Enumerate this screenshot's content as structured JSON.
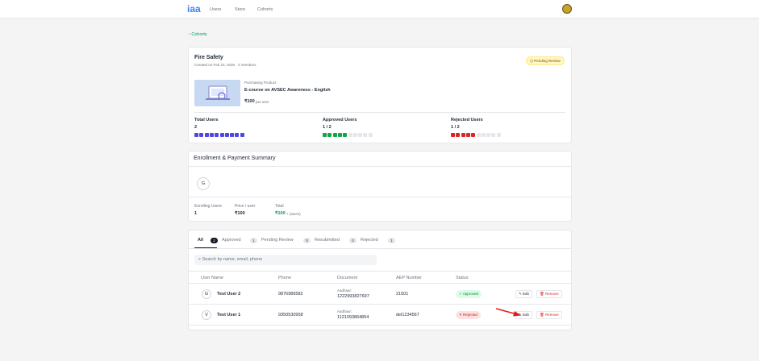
{
  "header": {
    "logo": "iaa",
    "nav": [
      "Users",
      "Store",
      "Cohorts"
    ]
  },
  "back_link": "Cohorts",
  "cohort": {
    "title": "Fire Safety",
    "subtitle": "Created on Feb 23, 2026 · 2 members",
    "badge": "Pending Review",
    "product": {
      "label": "Purchasing Product",
      "name": "E-course on AVSEC Awareness - English",
      "price": "₹100",
      "unit": "per user"
    },
    "stats": [
      {
        "label": "Total Users",
        "value": "2"
      },
      {
        "label": "Approved Users",
        "value": "1 / 2"
      },
      {
        "label": "Rejected Users",
        "value": "1 / 2"
      }
    ]
  },
  "summary": {
    "title": "Enrollment & Payment Summary",
    "avatar": "G",
    "fields": [
      {
        "label": "Enrolling Users",
        "value": "1"
      },
      {
        "label": "Price / user",
        "value": "₹100"
      },
      {
        "label": "Total",
        "value": "₹100",
        "note": "+ (taxes)"
      }
    ]
  },
  "tabs": [
    {
      "label": "All",
      "count": "2"
    },
    {
      "label": "Approved",
      "count": "1"
    },
    {
      "label": "Pending Review",
      "count": "0"
    },
    {
      "label": "Resubmitted",
      "count": "0"
    },
    {
      "label": "Rejected",
      "count": "1"
    }
  ],
  "search_placeholder": "Search by name, email, phone",
  "table": {
    "headers": [
      "User Name",
      "Phone",
      "Document",
      "AEP Number",
      "Status"
    ],
    "rows": [
      {
        "avatar": "G",
        "name": "Test User 2",
        "phone": "9876986582",
        "doc_label": "Aadhaar:",
        "doc": "1222993827697",
        "aep": "21501",
        "status": "Approved",
        "edit": "Edit",
        "remove": "Remove"
      },
      {
        "avatar": "V",
        "name": "Test User 1",
        "phone": "9350530958",
        "doc_label": "Aadhaar:",
        "doc": "1121093864854",
        "aep": "del1234567",
        "status": "Rejected",
        "edit": "Edit",
        "remove": "Remove"
      }
    ]
  }
}
